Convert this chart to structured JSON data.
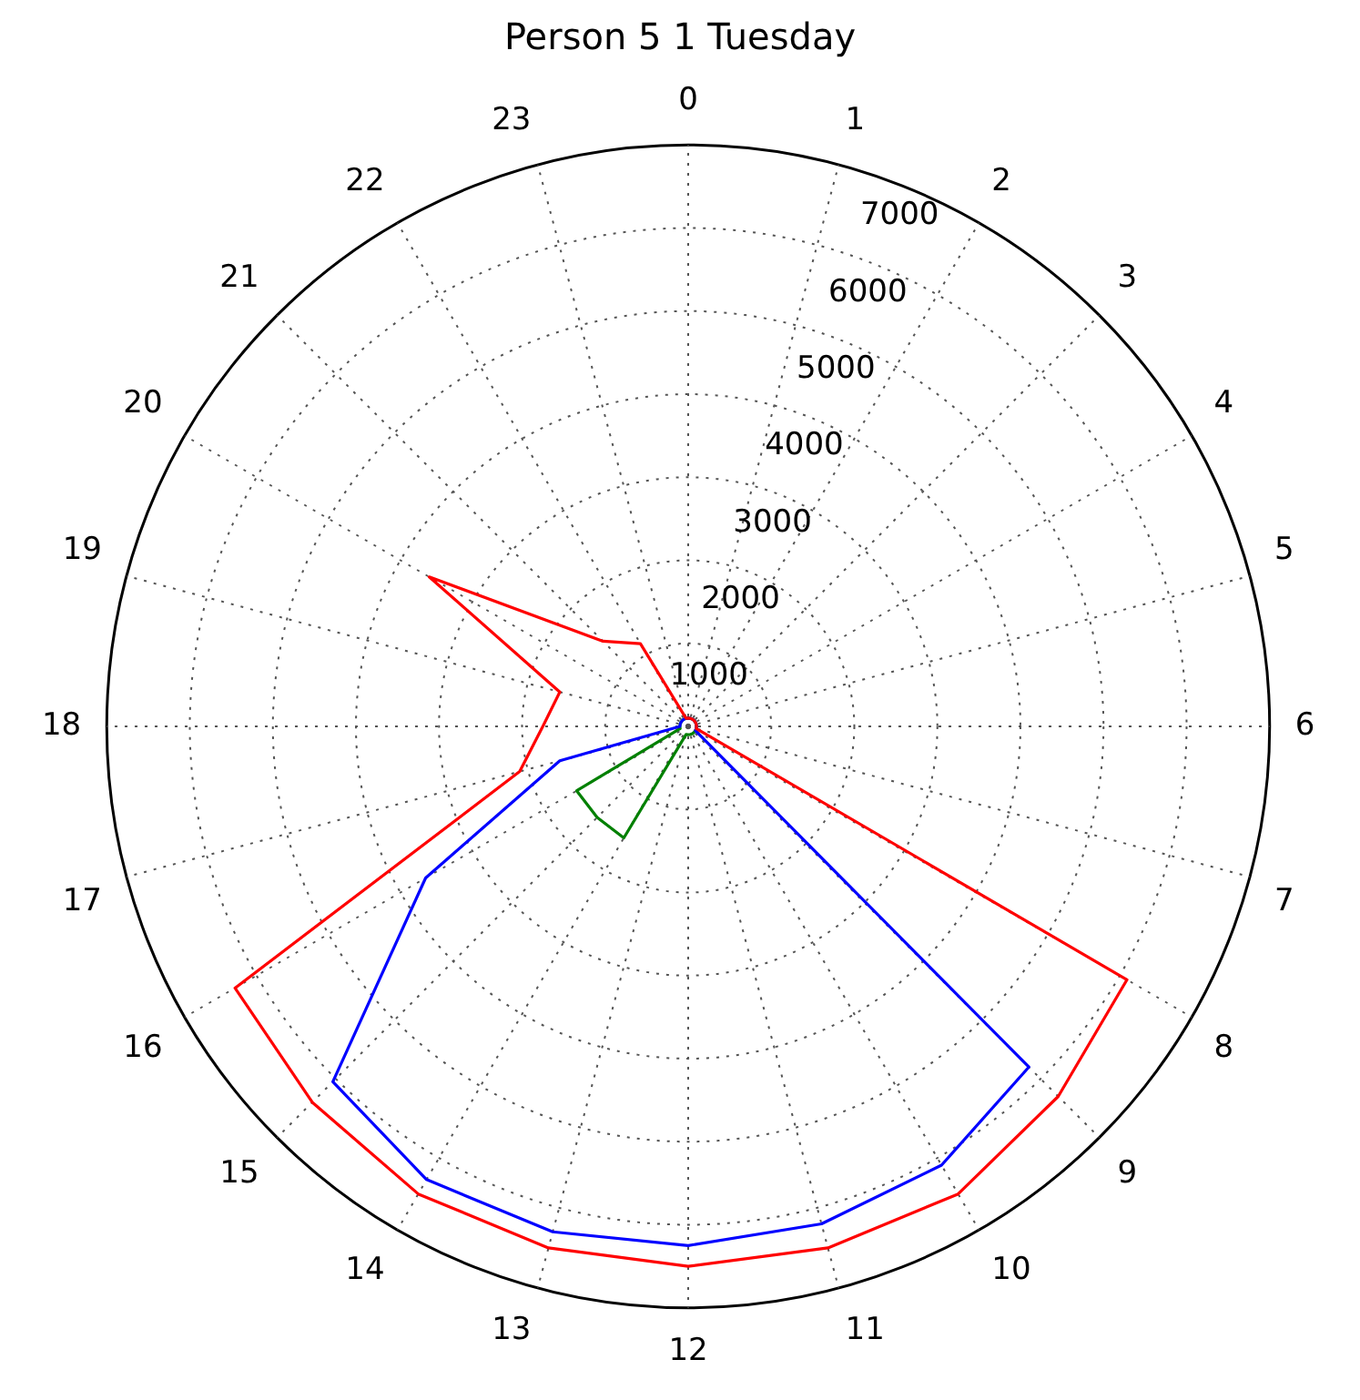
{
  "chart_data": {
    "type": "radar",
    "title": "Person 5 1 Tuesday",
    "categories": [
      "0",
      "1",
      "2",
      "3",
      "4",
      "5",
      "6",
      "7",
      "8",
      "9",
      "10",
      "11",
      "12",
      "13",
      "14",
      "15",
      "16",
      "17",
      "18",
      "19",
      "20",
      "21",
      "22",
      "23"
    ],
    "series": [
      {
        "color": "#ff0000",
        "values": [
          100,
          100,
          100,
          100,
          100,
          100,
          100,
          100,
          6100,
          6300,
          6500,
          6500,
          6500,
          6500,
          6500,
          6400,
          6300,
          2100,
          1750,
          1600,
          3600,
          1450,
          1150,
          100
        ]
      },
      {
        "color": "#0000ff",
        "values": [
          100,
          100,
          100,
          100,
          100,
          100,
          100,
          100,
          100,
          5800,
          6100,
          6200,
          6250,
          6300,
          6300,
          6050,
          3650,
          1600,
          100,
          100,
          100,
          100,
          100,
          100
        ]
      },
      {
        "color": "#008000",
        "values": [
          100,
          100,
          100,
          100,
          100,
          100,
          100,
          100,
          100,
          100,
          100,
          100,
          100,
          100,
          1550,
          1550,
          1550,
          100,
          100,
          100,
          100,
          100,
          100,
          100
        ]
      }
    ],
    "ylim": [
      0,
      7000
    ],
    "yticks": [
      1000,
      2000,
      3000,
      4000,
      5000,
      6000,
      7000
    ],
    "grid": true
  }
}
